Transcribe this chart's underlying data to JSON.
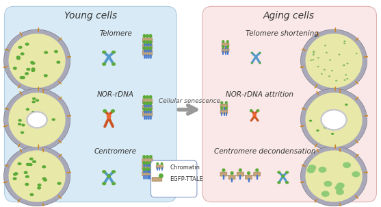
{
  "title_left": "Young cells",
  "title_right": "Aging cells",
  "arrow_text": "Cellular senescence",
  "left_bg_color": "#d8eaf5",
  "right_bg_color": "#fae8e8",
  "left_labels": [
    "Telomere",
    "NOR-rDNA",
    "Centromere"
  ],
  "right_labels": [
    "Telomere shortening",
    "NOR-rDNA attrition",
    "Centromere decondensation"
  ],
  "legend_items": [
    "Chromatin",
    "EGFP-TTALE"
  ],
  "background_color": "#ffffff",
  "figsize": [
    5.57,
    3.02
  ],
  "dpi": 100
}
